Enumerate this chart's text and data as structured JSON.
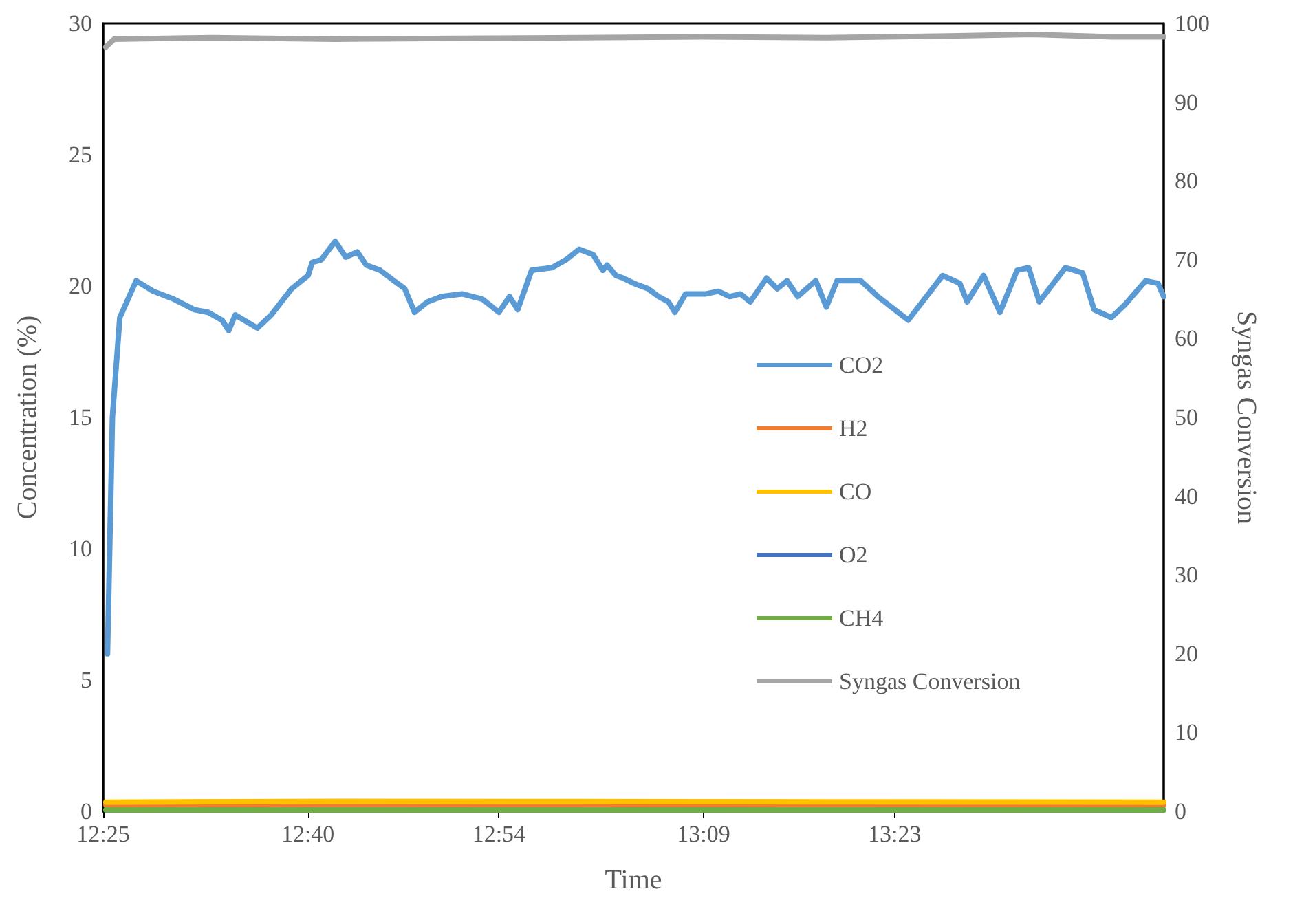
{
  "chart_data": {
    "type": "line",
    "xlabel": "Time",
    "ylabel": "Concentration (%)",
    "y2label": "Syngas Conversion",
    "xlim": [
      12.4167,
      13.712
    ],
    "xticks": [
      {
        "value": 12.4167,
        "label": "12:25"
      },
      {
        "value": 12.6667,
        "label": "12:40"
      },
      {
        "value": 12.9,
        "label": "12:54"
      },
      {
        "value": 13.15,
        "label": "13:09"
      },
      {
        "value": 13.3833,
        "label": "13:23"
      }
    ],
    "ylim": [
      0,
      30
    ],
    "yticks": [
      0,
      5,
      10,
      15,
      20,
      25,
      30
    ],
    "y2lim": [
      0,
      100
    ],
    "y2ticks": [
      0,
      10,
      20,
      30,
      40,
      50,
      60,
      70,
      80,
      90,
      100
    ],
    "grid": false,
    "legend": "right",
    "marker": "none",
    "line_style": "solid",
    "series": [
      {
        "name": "CO2",
        "color": "#5b9bd5",
        "x": [
          12.422,
          12.428,
          12.437,
          12.457,
          12.478,
          12.503,
          12.528,
          12.545,
          12.562,
          12.57,
          12.578,
          12.605,
          12.622,
          12.647,
          12.667,
          12.672,
          12.683,
          12.7,
          12.713,
          12.727,
          12.738,
          12.755,
          12.772,
          12.785,
          12.797,
          12.813,
          12.83,
          12.855,
          12.88,
          12.9,
          12.913,
          12.923,
          12.94,
          12.965,
          12.982,
          12.998,
          13.015,
          13.027,
          13.032,
          13.043,
          13.052,
          13.065,
          13.082,
          13.095,
          13.107,
          13.115,
          13.128,
          13.153,
          13.168,
          13.182,
          13.195,
          13.207,
          13.227,
          13.24,
          13.252,
          13.265,
          13.287,
          13.3,
          13.313,
          13.342,
          13.363,
          13.4,
          13.442,
          13.463,
          13.472,
          13.492,
          13.512,
          13.533,
          13.547,
          13.56,
          13.592,
          13.613,
          13.627,
          13.648,
          13.665,
          13.69,
          13.705,
          13.712
        ],
        "values": [
          6,
          15,
          18.8,
          20.2,
          19.8,
          19.5,
          19.1,
          19,
          18.7,
          18.3,
          18.9,
          18.4,
          18.9,
          19.9,
          20.4,
          20.9,
          21,
          21.7,
          21.1,
          21.3,
          20.8,
          20.6,
          20.2,
          19.9,
          19,
          19.4,
          19.6,
          19.7,
          19.5,
          19,
          19.6,
          19.1,
          20.6,
          20.7,
          21,
          21.4,
          21.2,
          20.6,
          20.8,
          20.4,
          20.3,
          20.1,
          19.9,
          19.6,
          19.4,
          19,
          19.7,
          19.7,
          19.8,
          19.6,
          19.7,
          19.4,
          20.3,
          19.9,
          20.2,
          19.6,
          20.2,
          19.2,
          20.2,
          20.2,
          19.6,
          18.7,
          20.4,
          20.1,
          19.4,
          20.4,
          19,
          20.6,
          20.7,
          19.4,
          20.7,
          20.5,
          19.1,
          18.8,
          19.3,
          20.2,
          20.1,
          19.6
        ]
      },
      {
        "name": "H2",
        "color": "#ed7d31",
        "x": [
          12.42,
          12.7,
          13,
          13.3,
          13.712
        ],
        "values": [
          0.25,
          0.25,
          0.25,
          0.25,
          0.25
        ]
      },
      {
        "name": "CO",
        "color": "#ffc000",
        "x": [
          12.42,
          12.7,
          13,
          13.3,
          13.712
        ],
        "values": [
          0.35,
          0.38,
          0.37,
          0.36,
          0.35
        ]
      },
      {
        "name": "O2",
        "color": "#4472c4"
      },
      {
        "name": "CH4",
        "color": "#70ad47",
        "x": [
          12.42,
          12.7,
          13,
          13.3,
          13.712
        ],
        "values": [
          0.05,
          0.05,
          0.05,
          0.05,
          0.05
        ]
      },
      {
        "name": "Syngas Conversion",
        "color": "#a5a5a5",
        "axis": "y2",
        "x": [
          12.42,
          12.43,
          12.55,
          12.7,
          12.85,
          13,
          13.15,
          13.3,
          13.45,
          13.55,
          13.65,
          13.712
        ],
        "values": [
          97,
          98,
          98.2,
          98,
          98.1,
          98.2,
          98.3,
          98.2,
          98.4,
          98.6,
          98.3,
          98.3
        ]
      }
    ]
  }
}
